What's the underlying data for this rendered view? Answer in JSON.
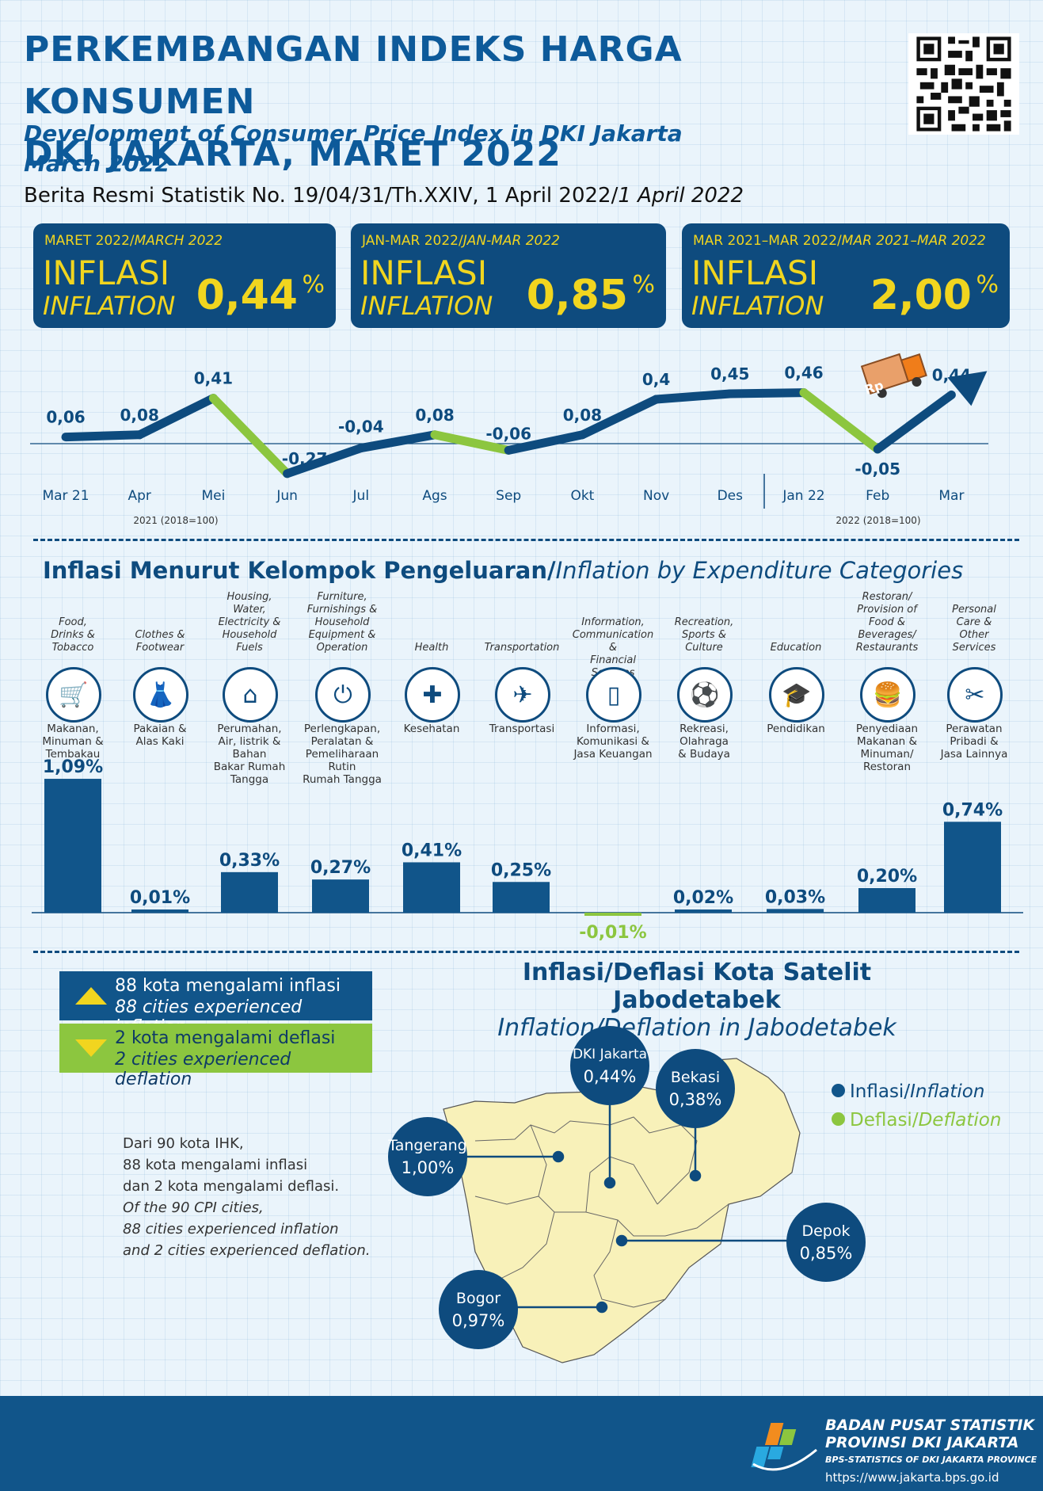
{
  "header": {
    "title_line1": "PERKEMBANGAN INDEKS HARGA KONSUMEN",
    "title_line2": "DKI JAKARTA, MARET 2022",
    "subtitle_line1": "Development of Consumer Price Index in DKI Jakarta",
    "subtitle_line2": "March 2022",
    "release": "Berita Resmi Statistik No. 19/04/31/Th.XXIV, 1 April 2022/",
    "release_italic": "1 April 2022"
  },
  "boxes": [
    {
      "period": "MARET 2022/",
      "period_en": "MARCH 2022",
      "label": "INFLASI",
      "label_en": "INFLATION",
      "value": "0,44",
      "unit": "%"
    },
    {
      "period": "JAN-MAR 2022/",
      "period_en": "JAN-MAR 2022",
      "label": "INFLASI",
      "label_en": "INFLATION",
      "value": "0,85",
      "unit": "%"
    },
    {
      "period": "MAR 2021–MAR 2022/",
      "period_en": "MAR 2021–MAR 2022",
      "label": "INFLASI",
      "label_en": "INFLATION",
      "value": "2,00",
      "unit": "%"
    }
  ],
  "chart_data": [
    {
      "type": "line",
      "x": [
        "Mar 21",
        "Apr",
        "Mei",
        "Jun",
        "Jul",
        "Ags",
        "Sep",
        "Okt",
        "Nov",
        "Des",
        "Jan 22",
        "Feb",
        "Mar"
      ],
      "series": [
        {
          "values": [
            0.06,
            0.08,
            0.41,
            -0.27,
            -0.04,
            0.08,
            -0.06,
            0.08,
            0.4,
            0.45,
            0.46,
            -0.05,
            0.44
          ]
        }
      ],
      "data_labels": [
        "0,06",
        "0,08",
        "0,41",
        "-0,27",
        "-0,04",
        "0,08",
        "-0,06",
        "0,08",
        "0,4",
        "0,45",
        "0,46",
        "-0,05",
        "0,44"
      ],
      "base_notes": [
        "2021 (2018=100)",
        "2022 (2018=100)"
      ],
      "colors": {
        "rising": "#0e4b7e",
        "falling": "#8cc63f"
      }
    },
    {
      "type": "bar",
      "categories": [
        "Makanan, Minuman & Tembakau",
        "Pakaian & Alas Kaki",
        "Perumahan, Air, listrik & Bahan Bakar Rumah Tangga",
        "Perlengkapan, Peralatan & Pemeliharaan Rutin Rumah Tangga",
        "Kesehatan",
        "Transportasi",
        "Informasi, Komunikasi & Jasa Keuangan",
        "Rekreasi, Olahraga & Budaya",
        "Pendidikan",
        "Penyediaan Makanan & Minuman/ Restoran",
        "Perawatan Pribadi & Jasa Lainnya"
      ],
      "values": [
        1.09,
        0.01,
        0.33,
        0.27,
        0.41,
        0.25,
        -0.01,
        0.02,
        0.03,
        0.2,
        0.74
      ],
      "data_labels": [
        "1,09%",
        "0,01%",
        "0,33%",
        "0,27%",
        "0,41%",
        "0,25%",
        "-0,01%",
        "0,02%",
        "0,03%",
        "0,20%",
        "0,74%"
      ],
      "colors": {
        "positive": "#11558a",
        "negative": "#8cc63f"
      }
    }
  ],
  "categories_section": {
    "title": "Inflasi Menurut Kelompok Pengeluaran/",
    "title_en": "Inflation by Expenditure Categories",
    "items": [
      {
        "en": [
          "Food,",
          "Drinks &",
          "Tobacco"
        ],
        "id": [
          "Makanan,",
          "Minuman &",
          "Tembakau"
        ],
        "icon": "food-basket-icon",
        "glyph": "🛒"
      },
      {
        "en": [
          "Clothes &",
          "Footwear"
        ],
        "id": [
          "Pakaian &",
          "Alas Kaki"
        ],
        "icon": "dress-icon",
        "glyph": "👗"
      },
      {
        "en": [
          "Housing,",
          "Water,",
          "Electricity &",
          "Household",
          "Fuels"
        ],
        "id": [
          "Perumahan,",
          "Air, listrik &",
          "Bahan",
          "Bakar Rumah",
          "Tangga"
        ],
        "icon": "house-icon",
        "glyph": "⌂"
      },
      {
        "en": [
          "Furniture,",
          "Furnishings &",
          "Household",
          "Equipment &",
          "Operation"
        ],
        "id": [
          "Perlengkapan,",
          "Peralatan &",
          "Pemeliharaan",
          "Rutin",
          "Rumah Tangga"
        ],
        "icon": "plug-icon",
        "glyph": "⏻"
      },
      {
        "en": [
          "Health"
        ],
        "id": [
          "Kesehatan"
        ],
        "icon": "medical-kit-icon",
        "glyph": "✚"
      },
      {
        "en": [
          "Transportation"
        ],
        "id": [
          "Transportasi"
        ],
        "icon": "airplane-icon",
        "glyph": "✈"
      },
      {
        "en": [
          "Information,",
          "Communication &",
          "Financial Services"
        ],
        "id": [
          "Informasi,",
          "Komunikasi &",
          "Jasa Keuangan"
        ],
        "icon": "phone-icon",
        "glyph": "▯"
      },
      {
        "en": [
          "Recreation,",
          "Sports &",
          "Culture"
        ],
        "id": [
          "Rekreasi,",
          "Olahraga",
          "& Budaya"
        ],
        "icon": "football-player-icon",
        "glyph": "⚽"
      },
      {
        "en": [
          "Education"
        ],
        "id": [
          "Pendidikan"
        ],
        "icon": "graduation-cap-icon",
        "glyph": "🎓"
      },
      {
        "en": [
          "Restoran/",
          "Provision of",
          "Food &",
          "Beverages/",
          "Restaurants"
        ],
        "id": [
          "Penyediaan",
          "Makanan &",
          "Minuman/",
          "Restoran"
        ],
        "icon": "fast-food-icon",
        "glyph": "🍔"
      },
      {
        "en": [
          "Personal",
          "Care &",
          "Other",
          "Services"
        ],
        "id": [
          "Perawatan",
          "Pribadi &",
          "Jasa Lainnya"
        ],
        "icon": "comb-scissors-icon",
        "glyph": "✂"
      }
    ]
  },
  "legend": {
    "inflation_id": "88 kota mengalami inflasi",
    "inflation_en": "88 cities experienced inflation",
    "deflation_id": "2 kota mengalami deflasi",
    "deflation_en": "2 cities experienced deflation",
    "colors": {
      "inflation": "#11558a",
      "deflation": "#8cc63f",
      "arrow": "#f1d51f"
    }
  },
  "paragraph": {
    "id": [
      "Dari 90 kota IHK,",
      "88 kota mengalami inflasi",
      "dan 2 kota mengalami deflasi."
    ],
    "en": [
      "Of the 90 CPI cities,",
      "88 cities experienced inflation",
      "and 2 cities experienced deflation."
    ]
  },
  "map": {
    "title": "Inflasi/Deflasi Kota Satelit Jabodetabek",
    "title_en": "Inflation/Deflation in Jabodetabek",
    "legend_inflasi": "Inflasi/",
    "legend_inflasi_en": "Inflation",
    "legend_deflasi": "Deflasi/",
    "legend_deflasi_en": "Deflation",
    "cities": [
      {
        "name": "DKI Jakarta",
        "value": "0,44%"
      },
      {
        "name": "Bekasi",
        "value": "0,38%"
      },
      {
        "name": "Tangerang",
        "value": "1,00%"
      },
      {
        "name": "Depok",
        "value": "0,85%"
      },
      {
        "name": "Bogor",
        "value": "0,97%"
      }
    ]
  },
  "footer": {
    "org1": "BADAN PUSAT STATISTIK",
    "org2": "PROVINSI DKI JAKARTA",
    "org_en": "BPS-STATISTICS OF DKI JAKARTA PROVINCE",
    "url": "https://www.jakarta.bps.go.id"
  }
}
